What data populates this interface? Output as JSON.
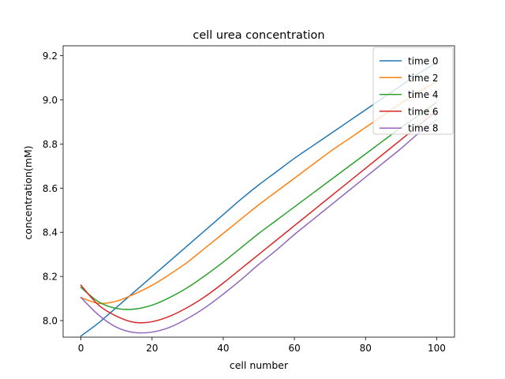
{
  "chart_data": {
    "type": "line",
    "title": "cell urea concentration",
    "xlabel": "cell number",
    "ylabel": "concentration(mM)",
    "xlim": [
      -5,
      105
    ],
    "ylim": [
      7.925,
      9.245
    ],
    "xticks": [
      0,
      20,
      40,
      60,
      80,
      100
    ],
    "yticks": [
      8.0,
      8.2,
      8.4,
      8.6,
      8.8,
      9.0,
      9.2
    ],
    "grid": false,
    "legend_position": "top-right",
    "x": [
      0,
      5,
      10,
      15,
      20,
      25,
      30,
      35,
      40,
      45,
      50,
      55,
      60,
      65,
      70,
      75,
      80,
      85,
      90,
      95,
      100
    ],
    "series": [
      {
        "name": "time 0",
        "color": "#1f77b4",
        "values": [
          7.93,
          7.99,
          8.06,
          8.13,
          8.2,
          8.27,
          8.34,
          8.41,
          8.48,
          8.55,
          8.615,
          8.675,
          8.735,
          8.79,
          8.845,
          8.9,
          8.955,
          9.01,
          9.065,
          9.12,
          9.17
        ]
      },
      {
        "name": "time 2",
        "color": "#ff7f0e",
        "values": [
          8.105,
          8.078,
          8.088,
          8.12,
          8.16,
          8.21,
          8.265,
          8.33,
          8.395,
          8.46,
          8.525,
          8.585,
          8.645,
          8.705,
          8.765,
          8.82,
          8.875,
          8.93,
          8.985,
          9.035,
          9.085
        ]
      },
      {
        "name": "time 4",
        "color": "#2ca02c",
        "values": [
          8.15,
          8.085,
          8.055,
          8.052,
          8.07,
          8.105,
          8.15,
          8.205,
          8.265,
          8.33,
          8.395,
          8.455,
          8.515,
          8.575,
          8.635,
          8.695,
          8.755,
          8.815,
          8.875,
          8.93,
          8.99
        ]
      },
      {
        "name": "time 6",
        "color": "#d62728",
        "values": [
          8.16,
          8.07,
          8.02,
          7.992,
          7.995,
          8.02,
          8.06,
          8.11,
          8.17,
          8.235,
          8.3,
          8.365,
          8.43,
          8.495,
          8.56,
          8.625,
          8.69,
          8.755,
          8.82,
          8.885,
          8.95
        ]
      },
      {
        "name": "time 8",
        "color": "#9467bd",
        "values": [
          8.105,
          8.025,
          7.97,
          7.946,
          7.948,
          7.97,
          8.01,
          8.06,
          8.12,
          8.185,
          8.255,
          8.32,
          8.39,
          8.455,
          8.52,
          8.585,
          8.65,
          8.715,
          8.78,
          8.85,
          8.91
        ]
      }
    ]
  }
}
